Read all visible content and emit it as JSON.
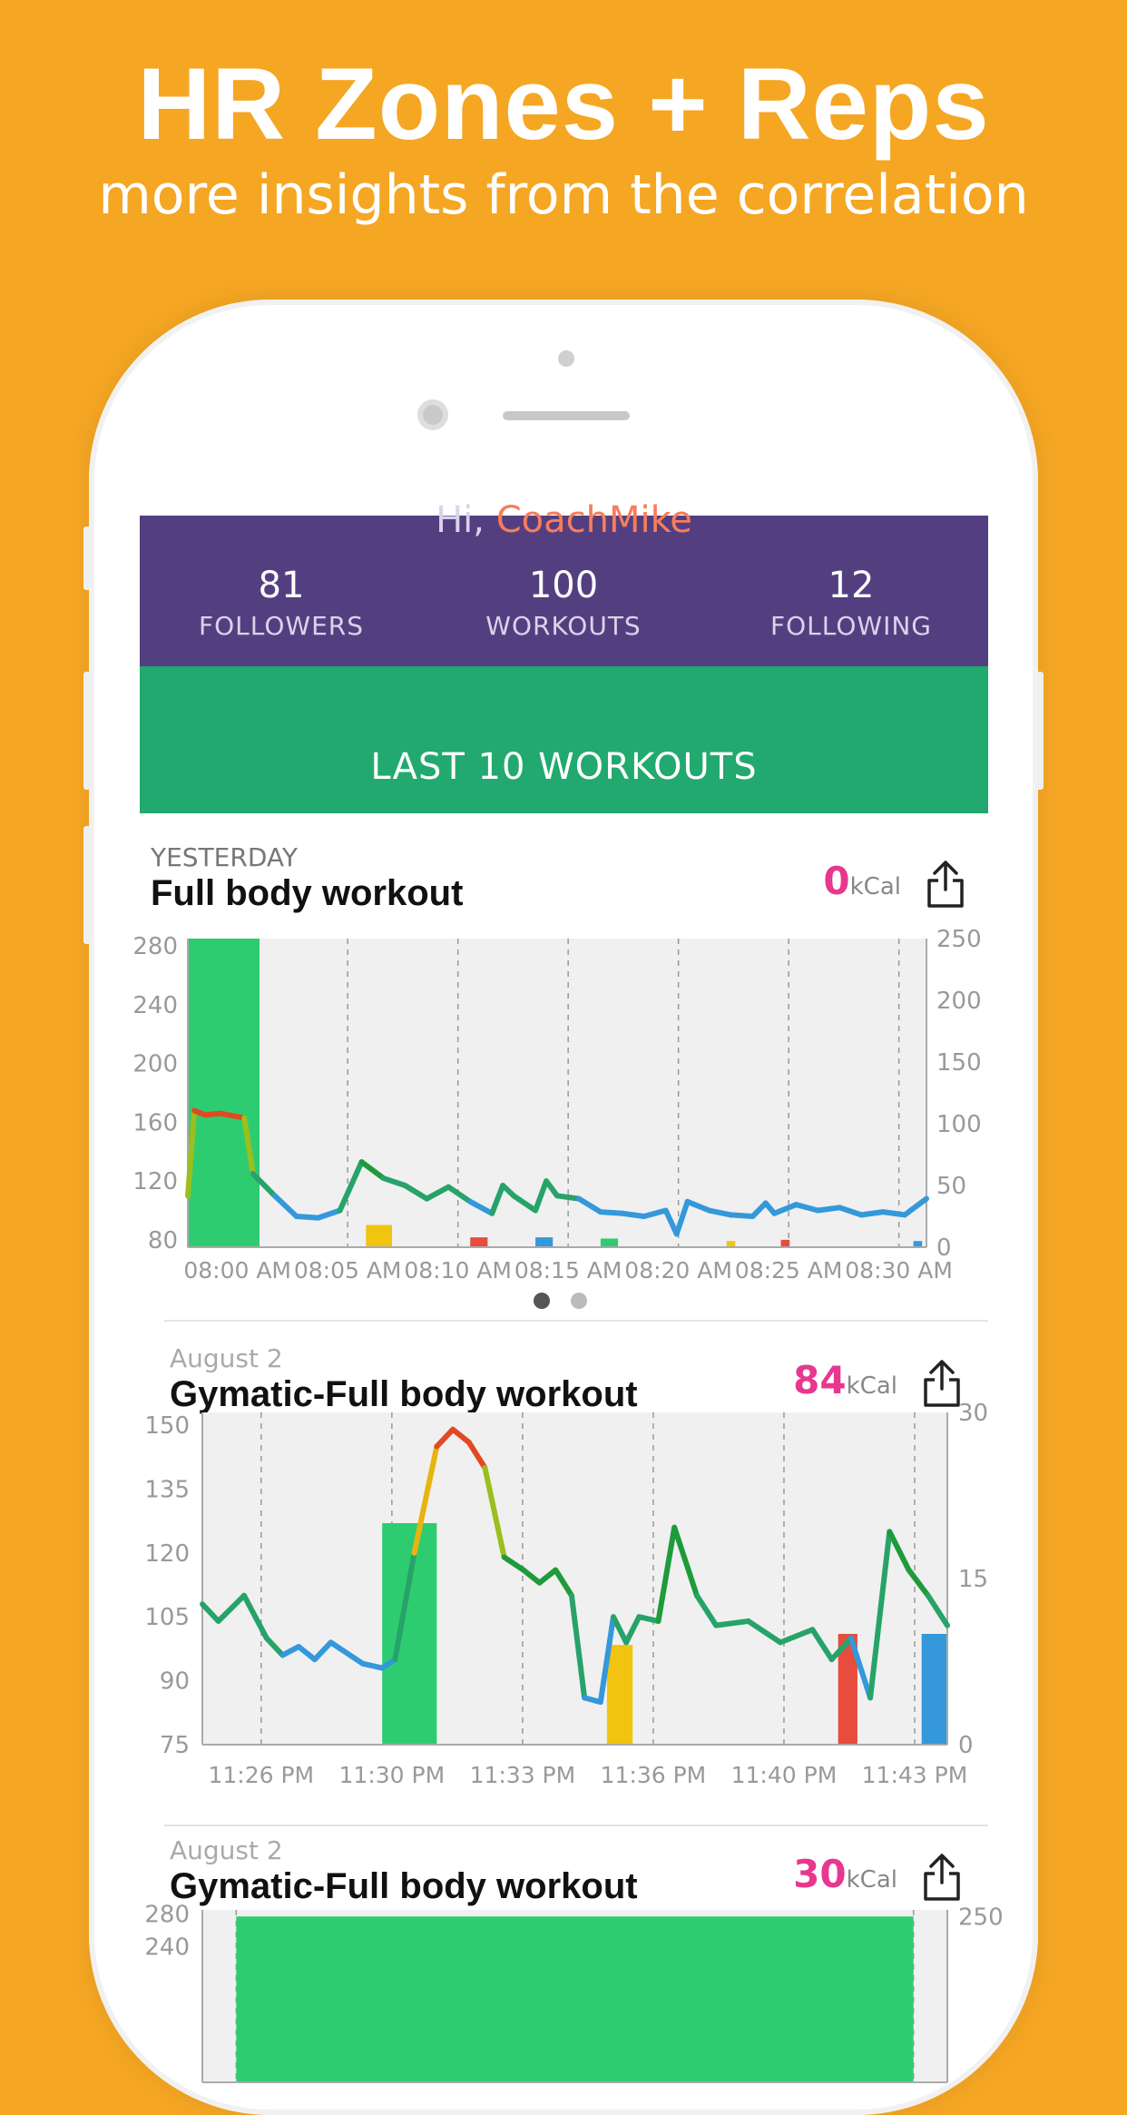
{
  "headline": {
    "title": "HR Zones + Reps",
    "subtitle": "more insights from the correlation"
  },
  "profile": {
    "greeting_prefix": "Hi, ",
    "user_name": "CoachMike",
    "stats": [
      {
        "value": "81",
        "label": "FOLLOWERS"
      },
      {
        "value": "100",
        "label": "WORKOUTS"
      },
      {
        "value": "12",
        "label": "FOLLOWING"
      }
    ],
    "colors": {
      "header": "#533F80",
      "name": "#F77D5A"
    }
  },
  "banner": {
    "label": "LAST 10 WORKOUTS",
    "color": "#22A96F"
  },
  "workouts": [
    {
      "date": "YESTERDAY",
      "title": "Full body workout",
      "kcal": "0",
      "kcal_unit": "kCal",
      "share_icon": "share-icon"
    },
    {
      "date": "August 2",
      "title": "Gymatic-Full body workout",
      "kcal": "84",
      "kcal_unit": "kCal",
      "share_icon": "share-icon"
    },
    {
      "date": "August 2",
      "title": "Gymatic-Full body workout",
      "kcal": "30",
      "kcal_unit": "kCal",
      "share_icon": "share-icon"
    }
  ],
  "pager": {
    "pages": 2,
    "active": 0
  },
  "chart_data": [
    {
      "type": "line",
      "ylabel_left": "",
      "ylabel_right": "",
      "yleft_ticks": [
        "280",
        "240",
        "200",
        "160",
        "120",
        "80"
      ],
      "yright_ticks": [
        "250",
        "200",
        "150",
        "100",
        "50",
        "0"
      ],
      "x_ticks": [
        "08:00 AM",
        "08:05 AM",
        "08:10 AM",
        "08:15 AM",
        "08:20 AM",
        "08:25 AM",
        "08:30 AM"
      ],
      "hr_series": [
        {
          "t": 0.0,
          "hr": 110
        },
        {
          "t": 0.3,
          "hr": 168
        },
        {
          "t": 0.8,
          "hr": 165
        },
        {
          "t": 1.5,
          "hr": 166
        },
        {
          "t": 2.6,
          "hr": 163
        },
        {
          "t": 3.0,
          "hr": 125
        },
        {
          "t": 4.0,
          "hr": 110
        },
        {
          "t": 5.0,
          "hr": 96
        },
        {
          "t": 6.0,
          "hr": 95
        },
        {
          "t": 7.0,
          "hr": 100
        },
        {
          "t": 8.0,
          "hr": 133
        },
        {
          "t": 9.0,
          "hr": 122
        },
        {
          "t": 10.0,
          "hr": 117
        },
        {
          "t": 11.0,
          "hr": 108
        },
        {
          "t": 12.0,
          "hr": 116
        },
        {
          "t": 13.0,
          "hr": 106
        },
        {
          "t": 14.0,
          "hr": 98
        },
        {
          "t": 14.5,
          "hr": 117
        },
        {
          "t": 15.0,
          "hr": 110
        },
        {
          "t": 16.0,
          "hr": 100
        },
        {
          "t": 16.5,
          "hr": 120
        },
        {
          "t": 17.0,
          "hr": 110
        },
        {
          "t": 18.0,
          "hr": 108
        },
        {
          "t": 19.0,
          "hr": 99
        },
        {
          "t": 20.0,
          "hr": 98
        },
        {
          "t": 21.0,
          "hr": 96
        },
        {
          "t": 22.0,
          "hr": 100
        },
        {
          "t": 22.5,
          "hr": 84
        },
        {
          "t": 23.0,
          "hr": 106
        },
        {
          "t": 24.0,
          "hr": 100
        },
        {
          "t": 25.0,
          "hr": 97
        },
        {
          "t": 26.0,
          "hr": 96
        },
        {
          "t": 26.6,
          "hr": 105
        },
        {
          "t": 27.0,
          "hr": 98
        },
        {
          "t": 28.0,
          "hr": 104
        },
        {
          "t": 29.0,
          "hr": 100
        },
        {
          "t": 30.0,
          "hr": 102
        },
        {
          "t": 31.0,
          "hr": 97
        },
        {
          "t": 32.0,
          "hr": 99
        },
        {
          "t": 33.0,
          "hr": 97
        },
        {
          "t": 34.0,
          "hr": 108
        }
      ],
      "rep_bars": [
        {
          "t_start": 0.0,
          "t_end": 3.3,
          "value": 250,
          "color": "#2ECC71"
        },
        {
          "t_start": 8.2,
          "t_end": 9.4,
          "value": 18,
          "color": "#F1C40F"
        },
        {
          "t_start": 13.0,
          "t_end": 13.8,
          "value": 8,
          "color": "#E74C3C"
        },
        {
          "t_start": 16.0,
          "t_end": 16.8,
          "value": 8,
          "color": "#3498DB"
        },
        {
          "t_start": 19.0,
          "t_end": 19.8,
          "value": 7,
          "color": "#2ECC71"
        },
        {
          "t_start": 24.8,
          "t_end": 25.2,
          "value": 5,
          "color": "#F1C40F"
        },
        {
          "t_start": 27.3,
          "t_end": 27.7,
          "value": 6,
          "color": "#E74C3C"
        },
        {
          "t_start": 33.4,
          "t_end": 33.8,
          "value": 5,
          "color": "#3498DB"
        }
      ],
      "yleft_range": [
        75,
        285
      ],
      "yright_range": [
        0,
        250
      ],
      "x_range_minutes": [
        0,
        34
      ],
      "grid": "vertical dashed"
    },
    {
      "type": "line",
      "yleft_ticks": [
        "150",
        "135",
        "120",
        "105",
        "90",
        "75"
      ],
      "yright_ticks": [
        "30",
        "15",
        "0"
      ],
      "x_ticks": [
        "11:26 PM",
        "11:30 PM",
        "11:33 PM",
        "11:36 PM",
        "11:40 PM",
        "11:43 PM"
      ],
      "hr_series": [
        {
          "t": 0.0,
          "hr": 108
        },
        {
          "t": 0.5,
          "hr": 104
        },
        {
          "t": 1.3,
          "hr": 110
        },
        {
          "t": 2.0,
          "hr": 100
        },
        {
          "t": 2.5,
          "hr": 96
        },
        {
          "t": 3.0,
          "hr": 98
        },
        {
          "t": 3.5,
          "hr": 95
        },
        {
          "t": 4.0,
          "hr": 99
        },
        {
          "t": 5.0,
          "hr": 94
        },
        {
          "t": 5.6,
          "hr": 93
        },
        {
          "t": 6.0,
          "hr": 95
        },
        {
          "t": 6.6,
          "hr": 120
        },
        {
          "t": 7.3,
          "hr": 145
        },
        {
          "t": 7.8,
          "hr": 149
        },
        {
          "t": 8.3,
          "hr": 146
        },
        {
          "t": 8.8,
          "hr": 140
        },
        {
          "t": 9.4,
          "hr": 119
        },
        {
          "t": 10.0,
          "hr": 116
        },
        {
          "t": 10.5,
          "hr": 113
        },
        {
          "t": 11.0,
          "hr": 116
        },
        {
          "t": 11.5,
          "hr": 110
        },
        {
          "t": 11.9,
          "hr": 86
        },
        {
          "t": 12.4,
          "hr": 85
        },
        {
          "t": 12.8,
          "hr": 105
        },
        {
          "t": 13.2,
          "hr": 99
        },
        {
          "t": 13.6,
          "hr": 105
        },
        {
          "t": 14.2,
          "hr": 104
        },
        {
          "t": 14.7,
          "hr": 126
        },
        {
          "t": 15.4,
          "hr": 110
        },
        {
          "t": 16.0,
          "hr": 103
        },
        {
          "t": 17.0,
          "hr": 104
        },
        {
          "t": 18.0,
          "hr": 99
        },
        {
          "t": 19.0,
          "hr": 102
        },
        {
          "t": 19.6,
          "hr": 95
        },
        {
          "t": 20.2,
          "hr": 100
        },
        {
          "t": 20.8,
          "hr": 86
        },
        {
          "t": 21.4,
          "hr": 125
        },
        {
          "t": 22.0,
          "hr": 116
        },
        {
          "t": 22.6,
          "hr": 110
        },
        {
          "t": 23.2,
          "hr": 103
        }
      ],
      "rep_bars": [
        {
          "t_start": 5.6,
          "t_end": 7.3,
          "value": 20,
          "color": "#2ECC71"
        },
        {
          "t_start": 12.6,
          "t_end": 13.4,
          "value": 9,
          "color": "#F1C40F"
        },
        {
          "t_start": 19.8,
          "t_end": 20.4,
          "value": 10,
          "color": "#E74C3C"
        },
        {
          "t_start": 22.4,
          "t_end": 23.2,
          "value": 10,
          "color": "#3498DB"
        }
      ],
      "yleft_range": [
        75,
        153
      ],
      "yright_range": [
        0,
        30
      ],
      "x_range_minutes": [
        0,
        23.2
      ],
      "grid": "vertical dashed"
    },
    {
      "type": "line",
      "yleft_ticks": [
        "280",
        "240"
      ],
      "yright_ticks": [
        "250"
      ],
      "rep_bars": [
        {
          "t_start": 1.0,
          "t_end": 21.0,
          "value": 250,
          "color": "#2ECC71"
        }
      ],
      "yleft_range": [
        75,
        285
      ],
      "yright_range": [
        0,
        260
      ],
      "x_range_minutes": [
        0,
        22
      ],
      "grid": "vertical dashed"
    }
  ]
}
